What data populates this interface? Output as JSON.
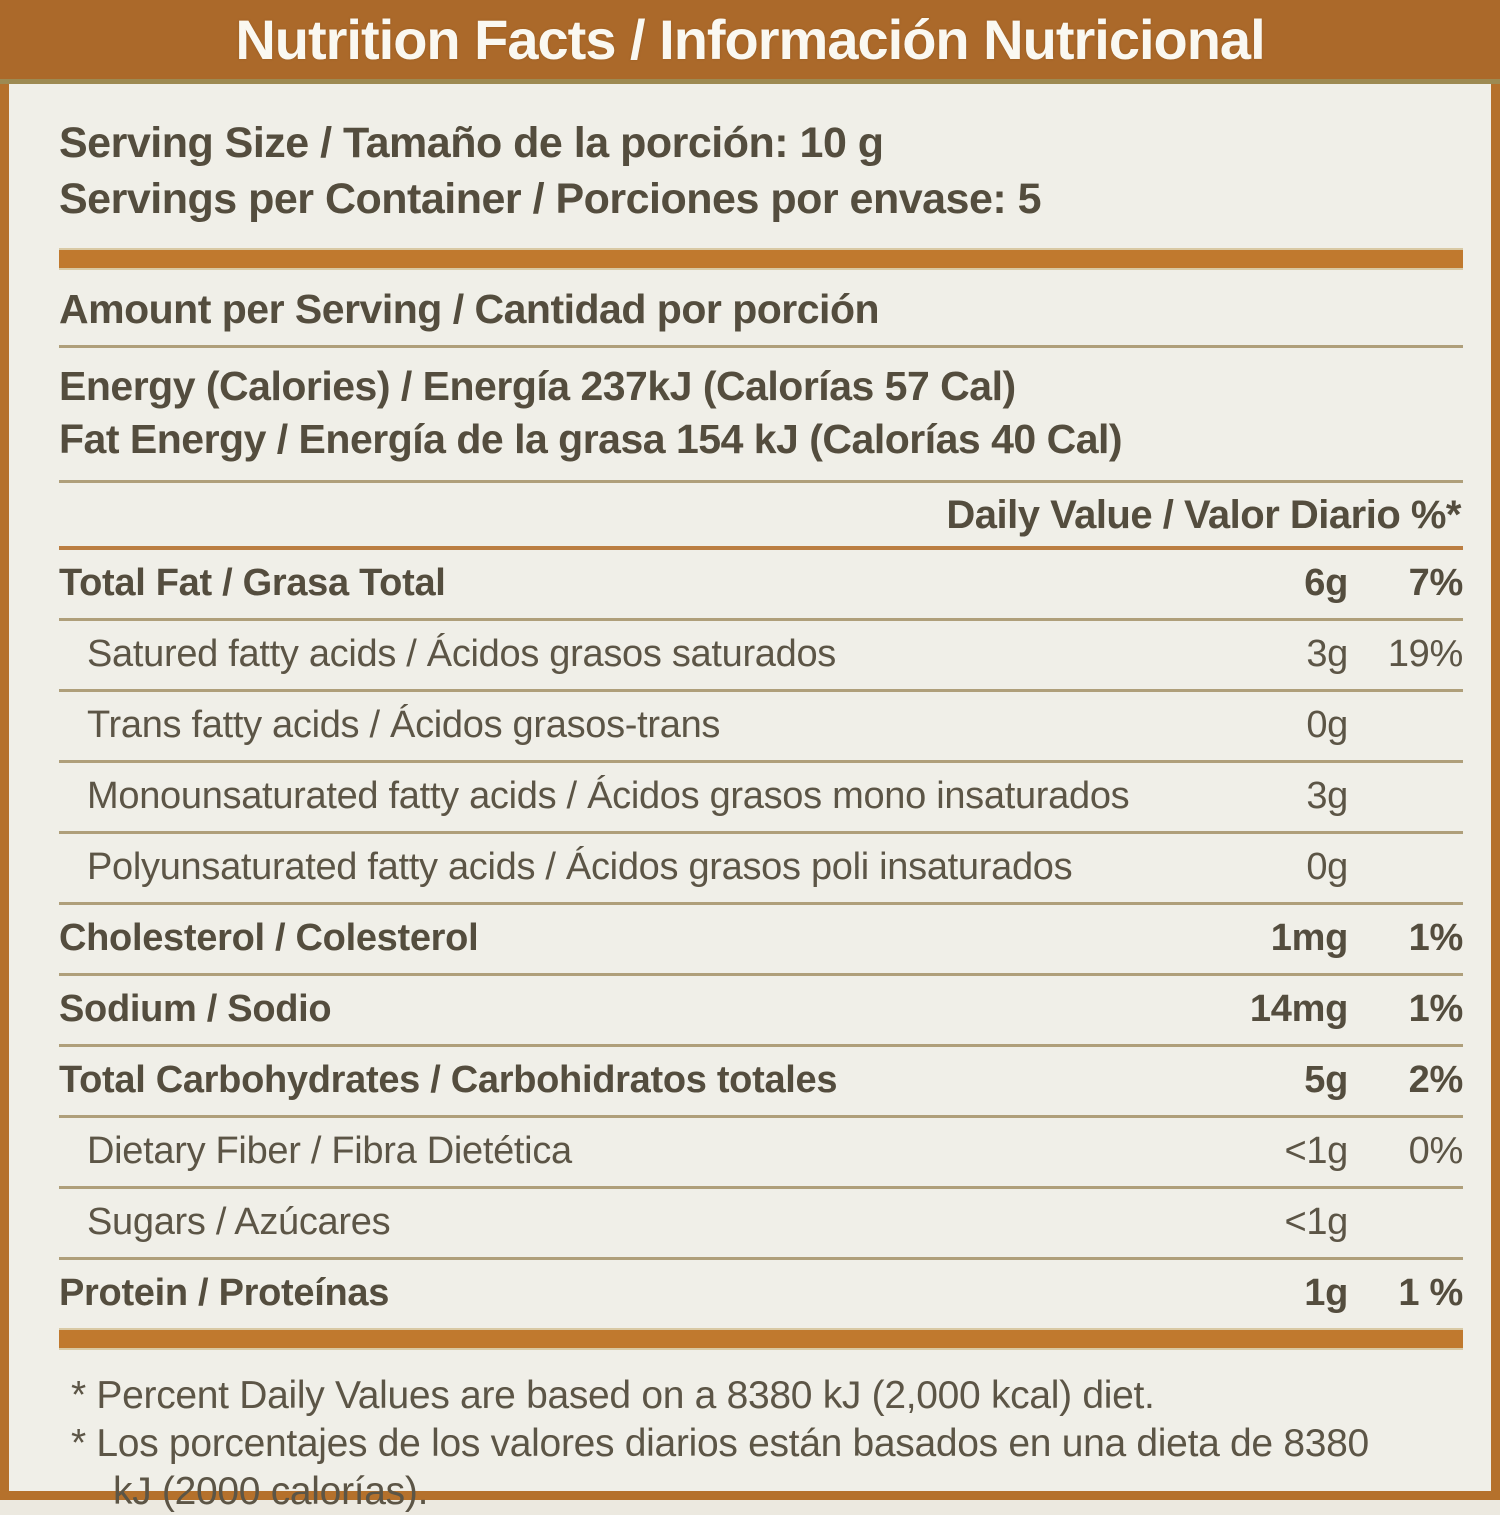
{
  "colors": {
    "frame": "#b5712c",
    "header_bg": "#ab692a",
    "header_edge": "#9d8a52",
    "header_text": "#faf8f1",
    "bar": "#c0792e",
    "rule": "#af9f7a",
    "rule_orange": "#bb7e42",
    "text": "#544d3e",
    "bg": "#f0efe8"
  },
  "header": {
    "title": "Nutrition Facts / Información Nutricional"
  },
  "serving": {
    "size": "Serving Size / Tamaño de la porción: 10 g",
    "per_container": "Servings per Container / Porciones por envase: 5"
  },
  "amount_per_serving": "Amount per Serving / Cantidad por porción",
  "energy": {
    "calories": "Energy (Calories) / Energía 237kJ (Calorías 57 Cal)",
    "fat_energy": "Fat Energy / Energía de la grasa 154 kJ (Calorías 40 Cal)"
  },
  "daily_value_header": "Daily Value / Valor Diario %*",
  "rows": [
    {
      "label": "Total Fat / Grasa Total",
      "amount": "6g",
      "dv": "7%",
      "bold": true,
      "indent": false
    },
    {
      "label": "Satured fatty acids / Ácidos grasos saturados",
      "amount": "3g",
      "dv": "19%",
      "bold": false,
      "indent": true
    },
    {
      "label": "Trans fatty acids / Ácidos grasos-trans",
      "amount": "0g",
      "dv": "",
      "bold": false,
      "indent": true
    },
    {
      "label": "Monounsaturated fatty acids / Ácidos grasos mono insaturados",
      "amount": "3g",
      "dv": "",
      "bold": false,
      "indent": true
    },
    {
      "label": "Polyunsaturated fatty acids / Ácidos grasos poli insaturados",
      "amount": "0g",
      "dv": "",
      "bold": false,
      "indent": true
    },
    {
      "label": "Cholesterol / Colesterol",
      "amount": "1mg",
      "dv": "1%",
      "bold": true,
      "indent": false
    },
    {
      "label": "Sodium / Sodio",
      "amount": "14mg",
      "dv": "1%",
      "bold": true,
      "indent": false
    },
    {
      "label": "Total Carbohydrates / Carbohidratos totales",
      "amount": "5g",
      "dv": "2%",
      "bold": true,
      "indent": false
    },
    {
      "label": "Dietary Fiber / Fibra Dietética",
      "amount": "<1g",
      "dv": "0%",
      "bold": false,
      "indent": true
    },
    {
      "label": "Sugars / Azúcares",
      "amount": "<1g",
      "dv": "",
      "bold": false,
      "indent": true
    },
    {
      "label": "Protein / Proteínas",
      "amount": "1g",
      "dv": "1 %",
      "bold": true,
      "indent": false
    }
  ],
  "footnotes": [
    "* Percent Daily Values are based on a 8380 kJ (2,000 kcal) diet.",
    "* Los porcentajes de los valores diarios están basados en una dieta de 8380 kJ (2000 calorías)."
  ]
}
